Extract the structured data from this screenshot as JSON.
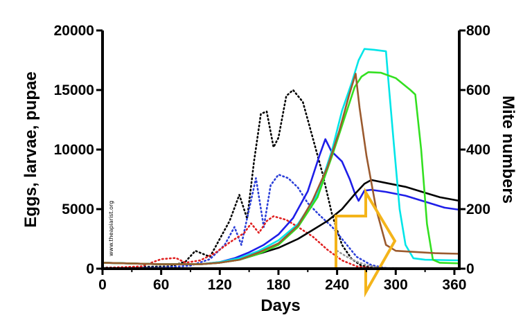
{
  "chart_data": {
    "type": "line",
    "xlabel": "Days",
    "ylabel_left": "Eggs, larvae, pupae",
    "ylabel_right": "Mite numbers",
    "xlim": [
      0,
      365
    ],
    "ylim_left": [
      0,
      20000
    ],
    "ylim_right": [
      0,
      800
    ],
    "x_ticks": [
      "0",
      "60",
      "120",
      "180",
      "240",
      "300",
      "360"
    ],
    "y_left_ticks": [
      "0",
      "5000",
      "10000",
      "15000",
      "20000"
    ],
    "y_right_ticks": [
      "0",
      "200",
      "400",
      "600",
      "800"
    ],
    "watermark": "www.theapiarist.org",
    "grid": false,
    "series": [
      {
        "axis": "left",
        "style": "dotted",
        "color": "#000000",
        "points": [
          [
            0,
            80
          ],
          [
            40,
            150
          ],
          [
            70,
            200
          ],
          [
            85,
            600
          ],
          [
            95,
            1500
          ],
          [
            110,
            1000
          ],
          [
            120,
            2500
          ],
          [
            130,
            4000
          ],
          [
            140,
            6200
          ],
          [
            148,
            4200
          ],
          [
            155,
            9000
          ],
          [
            162,
            13000
          ],
          [
            168,
            13200
          ],
          [
            175,
            10200
          ],
          [
            180,
            11000
          ],
          [
            188,
            14500
          ],
          [
            195,
            15000
          ],
          [
            205,
            14000
          ],
          [
            215,
            11000
          ],
          [
            225,
            8000
          ],
          [
            235,
            4500
          ],
          [
            245,
            2000
          ],
          [
            255,
            800
          ],
          [
            265,
            250
          ],
          [
            280,
            50
          ],
          [
            365,
            0
          ]
        ]
      },
      {
        "axis": "left",
        "style": "dotted",
        "color": "#2b3fd8",
        "points": [
          [
            0,
            50
          ],
          [
            60,
            100
          ],
          [
            90,
            250
          ],
          [
            110,
            800
          ],
          [
            125,
            2000
          ],
          [
            135,
            3500
          ],
          [
            142,
            2000
          ],
          [
            150,
            5000
          ],
          [
            157,
            7600
          ],
          [
            165,
            3500
          ],
          [
            172,
            7000
          ],
          [
            180,
            7900
          ],
          [
            190,
            7600
          ],
          [
            200,
            6800
          ],
          [
            210,
            5500
          ],
          [
            222,
            4500
          ],
          [
            235,
            3500
          ],
          [
            248,
            2200
          ],
          [
            260,
            1000
          ],
          [
            275,
            300
          ],
          [
            290,
            50
          ],
          [
            365,
            0
          ]
        ]
      },
      {
        "axis": "left",
        "style": "dotted",
        "color": "#e02020",
        "points": [
          [
            0,
            50
          ],
          [
            40,
            200
          ],
          [
            60,
            800
          ],
          [
            75,
            900
          ],
          [
            85,
            500
          ],
          [
            100,
            700
          ],
          [
            115,
            1300
          ],
          [
            130,
            2200
          ],
          [
            145,
            3000
          ],
          [
            152,
            3800
          ],
          [
            160,
            3000
          ],
          [
            168,
            4000
          ],
          [
            175,
            4400
          ],
          [
            188,
            4100
          ],
          [
            200,
            3500
          ],
          [
            215,
            2700
          ],
          [
            230,
            1600
          ],
          [
            245,
            700
          ],
          [
            260,
            200
          ],
          [
            275,
            50
          ],
          [
            365,
            0
          ]
        ]
      },
      {
        "axis": "left",
        "style": "dotted",
        "color": "#999999",
        "points": [
          [
            240,
            1500
          ],
          [
            250,
            1000
          ],
          [
            260,
            600
          ],
          [
            270,
            300
          ],
          [
            285,
            80
          ],
          [
            300,
            0
          ]
        ]
      },
      {
        "axis": "right",
        "style": "solid",
        "color": "#1e1ee8",
        "points": [
          [
            0,
            20
          ],
          [
            60,
            15
          ],
          [
            100,
            15
          ],
          [
            120,
            22
          ],
          [
            135,
            35
          ],
          [
            150,
            55
          ],
          [
            165,
            80
          ],
          [
            180,
            115
          ],
          [
            195,
            170
          ],
          [
            210,
            260
          ],
          [
            222,
            380
          ],
          [
            228,
            435
          ],
          [
            234,
            395
          ],
          [
            245,
            360
          ],
          [
            253,
            300
          ],
          [
            258,
            255
          ],
          [
            262,
            228
          ],
          [
            268,
            262
          ],
          [
            275,
            265
          ],
          [
            290,
            258
          ],
          [
            310,
            245
          ],
          [
            330,
            225
          ],
          [
            350,
            205
          ],
          [
            365,
            198
          ]
        ]
      },
      {
        "axis": "right",
        "style": "solid",
        "color": "#000000",
        "points": [
          [
            0,
            20
          ],
          [
            60,
            15
          ],
          [
            100,
            15
          ],
          [
            120,
            20
          ],
          [
            140,
            30
          ],
          [
            160,
            50
          ],
          [
            180,
            70
          ],
          [
            200,
            100
          ],
          [
            215,
            130
          ],
          [
            230,
            160
          ],
          [
            245,
            200
          ],
          [
            258,
            250
          ],
          [
            268,
            285
          ],
          [
            275,
            298
          ],
          [
            290,
            288
          ],
          [
            310,
            275
          ],
          [
            330,
            255
          ],
          [
            345,
            240
          ],
          [
            365,
            228
          ]
        ]
      },
      {
        "axis": "right",
        "style": "solid",
        "color": "#00e5e8",
        "points": [
          [
            0,
            20
          ],
          [
            60,
            15
          ],
          [
            100,
            15
          ],
          [
            120,
            22
          ],
          [
            140,
            35
          ],
          [
            160,
            60
          ],
          [
            180,
            95
          ],
          [
            200,
            150
          ],
          [
            220,
            250
          ],
          [
            235,
            400
          ],
          [
            245,
            530
          ],
          [
            255,
            625
          ],
          [
            262,
            700
          ],
          [
            268,
            738
          ],
          [
            278,
            735
          ],
          [
            290,
            730
          ],
          [
            292,
            650
          ],
          [
            298,
            420
          ],
          [
            304,
            200
          ],
          [
            310,
            80
          ],
          [
            318,
            35
          ],
          [
            330,
            30
          ],
          [
            365,
            28
          ]
        ]
      },
      {
        "axis": "right",
        "style": "solid",
        "color": "#33e020",
        "points": [
          [
            0,
            20
          ],
          [
            60,
            15
          ],
          [
            100,
            15
          ],
          [
            120,
            20
          ],
          [
            140,
            30
          ],
          [
            160,
            50
          ],
          [
            180,
            80
          ],
          [
            200,
            140
          ],
          [
            220,
            240
          ],
          [
            235,
            380
          ],
          [
            248,
            510
          ],
          [
            258,
            610
          ],
          [
            265,
            645
          ],
          [
            272,
            660
          ],
          [
            285,
            658
          ],
          [
            300,
            640
          ],
          [
            315,
            600
          ],
          [
            320,
            585
          ],
          [
            326,
            400
          ],
          [
            332,
            150
          ],
          [
            338,
            30
          ],
          [
            345,
            20
          ],
          [
            365,
            18
          ]
        ]
      },
      {
        "axis": "right",
        "style": "solid",
        "color": "#9b5a2e",
        "points": [
          [
            0,
            20
          ],
          [
            60,
            15
          ],
          [
            100,
            15
          ],
          [
            120,
            20
          ],
          [
            140,
            30
          ],
          [
            160,
            55
          ],
          [
            180,
            85
          ],
          [
            200,
            145
          ],
          [
            215,
            230
          ],
          [
            230,
            340
          ],
          [
            242,
            460
          ],
          [
            252,
            580
          ],
          [
            259,
            655
          ],
          [
            263,
            540
          ],
          [
            270,
            380
          ],
          [
            280,
            200
          ],
          [
            290,
            80
          ],
          [
            300,
            60
          ],
          [
            340,
            52
          ],
          [
            365,
            50
          ]
        ]
      }
    ]
  }
}
